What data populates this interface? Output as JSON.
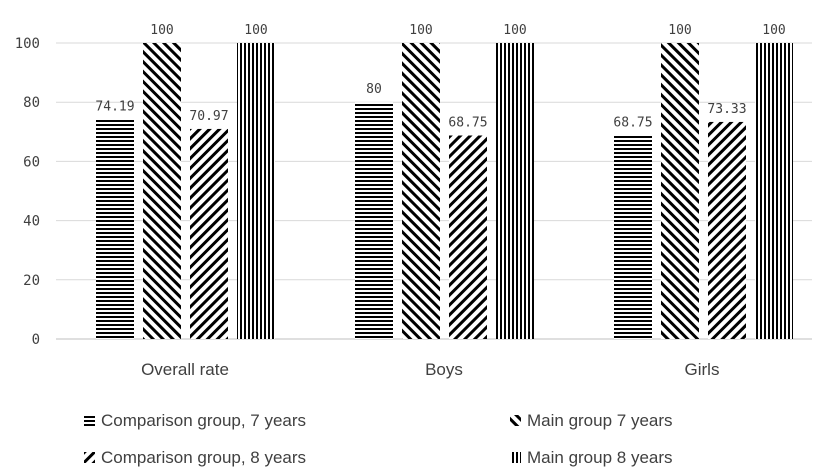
{
  "chart_data": {
    "type": "bar",
    "categories": [
      "Overall rate",
      "Boys",
      "Girls"
    ],
    "series": [
      {
        "name": "Comparison group, 7 years",
        "values": [
          74.19,
          80,
          68.75
        ],
        "pattern": "horizontal"
      },
      {
        "name": "Main group 7 years",
        "values": [
          100,
          100,
          100
        ],
        "pattern": "diag-down"
      },
      {
        "name": "Comparison group, 8 years",
        "values": [
          70.97,
          68.75,
          73.33
        ],
        "pattern": "diag-up"
      },
      {
        "name": "Main group 8 years",
        "values": [
          100,
          100,
          100
        ],
        "pattern": "vertical"
      }
    ],
    "data_labels": [
      [
        "74.19",
        "80",
        "68.75"
      ],
      [
        "100",
        "100",
        "100"
      ],
      [
        "70.97",
        "68.75",
        "73.33"
      ],
      [
        "100",
        "100",
        "100"
      ]
    ],
    "y_ticks": [
      "0",
      "20",
      "40",
      "60",
      "80",
      "100"
    ],
    "ylim": [
      0,
      100
    ],
    "grid": true,
    "legend_position": "bottom",
    "colors": {
      "bar": "#000000",
      "grid": "#d9d9d9",
      "text": "#404040"
    }
  }
}
